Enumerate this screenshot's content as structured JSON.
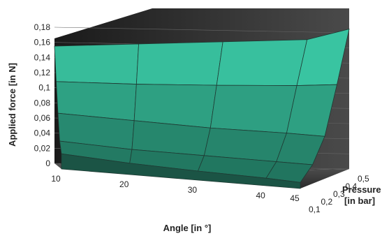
{
  "chart_data": {
    "type": "surface3d",
    "title": "",
    "xlabel": "Angle [in °]",
    "ylabel": "Pressure [in bar]",
    "zlabel": "Applied force [in N]",
    "ylabel_lines": [
      "Pressure",
      "[in bar]"
    ],
    "x_ticks": [
      "10",
      "20",
      "30",
      "40",
      "45"
    ],
    "y_ticks": [
      "0,1",
      "0,2",
      "0,3",
      "0,4",
      "0,5"
    ],
    "z_ticks": [
      "0",
      "0,02",
      "0,04",
      "0,06",
      "0,08",
      "0,1",
      "0,12",
      "0,14",
      "0,16",
      "0,18"
    ],
    "x": [
      10,
      20,
      30,
      40,
      45
    ],
    "y": [
      0.1,
      0.2,
      0.3,
      0.4,
      0.5
    ],
    "z": [
      [
        0.02,
        0.015,
        0.012,
        0.01,
        0.008
      ],
      [
        0.035,
        0.03,
        0.028,
        0.026,
        0.025
      ],
      [
        0.07,
        0.065,
        0.06,
        0.058,
        0.056
      ],
      [
        0.11,
        0.11,
        0.112,
        0.115,
        0.118
      ],
      [
        0.155,
        0.16,
        0.165,
        0.17,
        0.185
      ]
    ],
    "zlim": [
      0,
      0.18
    ],
    "grid": true,
    "colors": {
      "surface_low": "#1e6b56",
      "surface_high": "#3fd8b2",
      "wall": "#2b2b2b",
      "floor": "#2f2f2f",
      "mesh": "#1f3a33"
    }
  }
}
